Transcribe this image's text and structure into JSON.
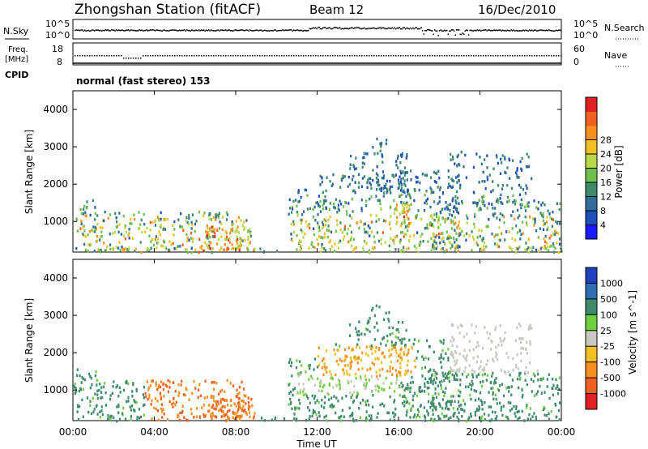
{
  "header": {
    "station": "Zhongshan Station (fitACF)",
    "beam": "Beam 12",
    "date": "16/Dec/2010"
  },
  "nsky_panel": {
    "left_label": "N.Sky",
    "left_ticks": [
      "10^5",
      "10^0"
    ],
    "right_label": "N.Search",
    "right_ticks": [
      "10^5",
      "10^0"
    ]
  },
  "freq_panel": {
    "left_label_1": "Freq.",
    "left_label_2": "[MHz]",
    "left_ticks": [
      "18",
      "8"
    ],
    "right_label": "Nave",
    "right_ticks": [
      "60",
      "0"
    ]
  },
  "cpid": {
    "label": "CPID",
    "mode": "normal (fast stereo) 153"
  },
  "chart_data": [
    {
      "type": "heatmap",
      "quantity": "Power",
      "ylabel": "Slant Range [km]",
      "xlabel": "Time UT",
      "xlim": [
        "00:00",
        "24:00"
      ],
      "x_ticks": [
        "00:00",
        "04:00",
        "08:00",
        "12:00",
        "16:00",
        "20:00",
        "00:00"
      ],
      "ylim": [
        180,
        4500
      ],
      "y_ticks": [
        1000,
        2000,
        3000,
        4000
      ],
      "colorbar_label": "Power [dB]",
      "colorbar_ticks": [
        4,
        8,
        12,
        16,
        20,
        24,
        28
      ],
      "colorscale": [
        "#1a1aff",
        "#1f4fb8",
        "#2f6f9a",
        "#3f8a6a",
        "#6fbf4f",
        "#b8d84a",
        "#f0c020",
        "#f59020",
        "#f06020",
        "#e02020"
      ]
    },
    {
      "type": "heatmap",
      "quantity": "Velocity",
      "ylabel": "Slant Range [km]",
      "xlabel": "Time UT",
      "xlim": [
        "00:00",
        "24:00"
      ],
      "x_ticks": [
        "00:00",
        "04:00",
        "08:00",
        "12:00",
        "16:00",
        "20:00",
        "00:00"
      ],
      "ylim": [
        180,
        4500
      ],
      "y_ticks": [
        1000,
        2000,
        3000,
        4000
      ],
      "colorbar_label": "Velocity [m s^-1]",
      "colorbar_ticks": [
        "1000",
        "500",
        "100",
        "25",
        "-25",
        "-100",
        "-500",
        "-1000"
      ],
      "colorscale": [
        "#2040c0",
        "#2f6fb0",
        "#3f8a6a",
        "#6fcf3f",
        "#c8c8c0",
        "#f0c020",
        "#f59020",
        "#f06020",
        "#e02020"
      ]
    }
  ],
  "xaxis": {
    "ticks": [
      "00:00",
      "04:00",
      "08:00",
      "12:00",
      "16:00",
      "20:00",
      "00:00"
    ],
    "label": "Time UT"
  }
}
